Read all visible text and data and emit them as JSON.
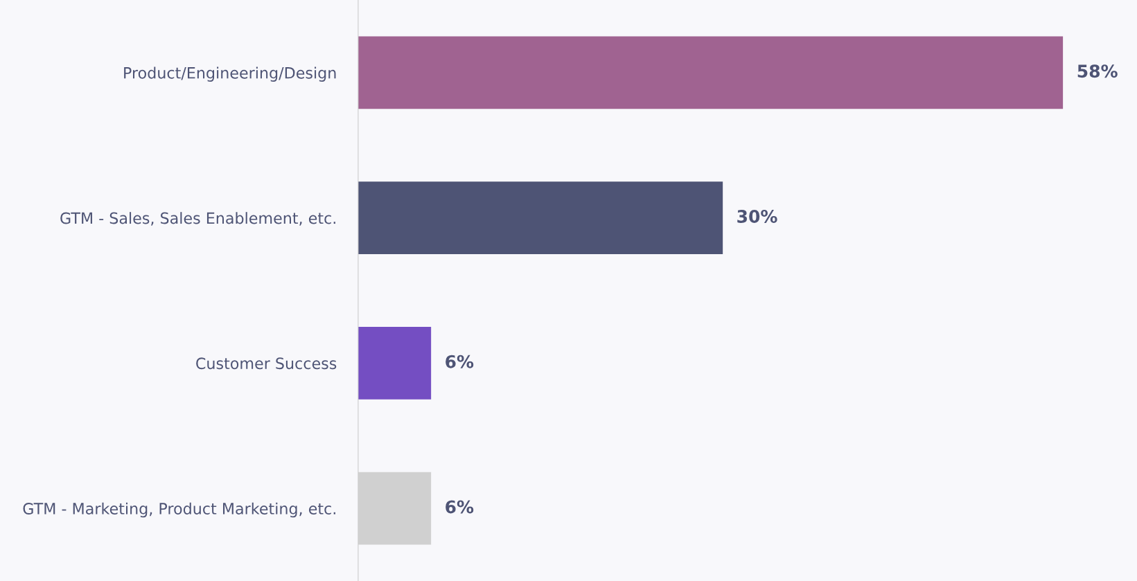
{
  "chart_data": {
    "type": "bar",
    "orientation": "horizontal",
    "categories": [
      "Product/Engineering/Design",
      "GTM - Sales, Sales Enablement, etc.",
      "Customer Success",
      "GTM - Marketing, Product Marketing, etc."
    ],
    "values": [
      58,
      30,
      6,
      6
    ],
    "value_labels": [
      "58%",
      "30%",
      "6%",
      "6%"
    ],
    "colors": [
      "#a06391",
      "#4e5475",
      "#744ec2",
      "#d0d0d0"
    ],
    "grid": false,
    "legend": false
  }
}
